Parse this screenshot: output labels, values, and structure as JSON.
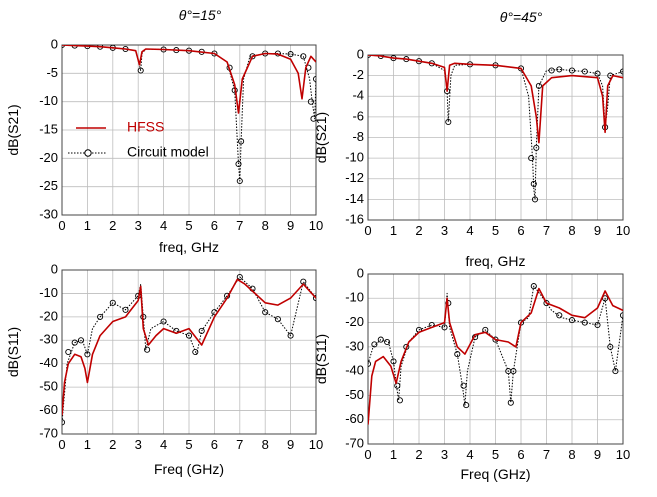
{
  "colors": {
    "hfss": "#c00000",
    "circuit": "#000000",
    "grid": "#bdbdbd"
  },
  "chart_data": [
    {
      "type": "line",
      "title": "θ°=15°",
      "xlabel": "freq, GHz",
      "ylabel": "dB(S21)",
      "xlim": [
        0,
        10
      ],
      "ylim": [
        -30,
        0
      ],
      "xticks": [
        0,
        1,
        2,
        3,
        4,
        5,
        6,
        7,
        8,
        9,
        10
      ],
      "yticks": [
        0,
        -5,
        -10,
        -15,
        -20,
        -25,
        -30
      ],
      "grid": true,
      "legend": {
        "placement": "left",
        "entries": [
          {
            "label": "HFSS",
            "color": "#c00000",
            "style": "solid"
          },
          {
            "label": "Circuit model",
            "color": "#000000",
            "style": "dotted-circle"
          }
        ]
      },
      "series": [
        {
          "name": "HFSS",
          "style": "solid",
          "color": "#c00000",
          "x": [
            0,
            0.5,
            1,
            1.5,
            2,
            2.5,
            2.9,
            3.05,
            3.15,
            3.3,
            4,
            5,
            6,
            6.5,
            6.8,
            6.95,
            7.1,
            7.5,
            8,
            8.5,
            9,
            9.3,
            9.45,
            9.6,
            9.8,
            10
          ],
          "y": [
            0,
            -0.1,
            -0.2,
            -0.3,
            -0.5,
            -0.7,
            -1.0,
            -3.5,
            -1.2,
            -0.7,
            -0.8,
            -1.0,
            -1.5,
            -3,
            -7,
            -12,
            -6,
            -2,
            -1.5,
            -1.6,
            -2.5,
            -5,
            -9.5,
            -4,
            -2,
            -3
          ]
        },
        {
          "name": "Circuit model",
          "style": "dotted",
          "color": "#000000",
          "x": [
            0,
            0.5,
            1,
            1.5,
            2,
            2.5,
            2.9,
            3.1,
            3.15,
            3.3,
            4,
            5,
            6,
            6.5,
            6.8,
            6.95,
            7.0,
            7.05,
            7.15,
            7.4,
            8,
            8.5,
            9,
            9.5,
            9.75,
            9.85,
            9.95,
            10
          ],
          "y": [
            0,
            -0.1,
            -0.2,
            -0.3,
            -0.5,
            -0.7,
            -1.0,
            -4.5,
            -1.5,
            -0.7,
            -0.8,
            -1.0,
            -1.5,
            -3,
            -8,
            -21,
            -24,
            -17,
            -6,
            -2,
            -1.5,
            -1.5,
            -1.6,
            -2,
            -6,
            -10,
            -13,
            -6
          ],
          "markers_x": [
            0,
            0.5,
            1,
            1.5,
            2,
            2.5,
            3.1,
            4,
            4.5,
            5,
            5.5,
            6,
            6.6,
            6.8,
            6.95,
            7.0,
            7.05,
            7.5,
            8,
            8.5,
            9,
            9.5,
            9.7,
            9.8,
            9.9,
            10
          ],
          "markers_y": [
            0,
            -0.1,
            -0.2,
            -0.3,
            -0.5,
            -0.7,
            -4.5,
            -0.8,
            -0.9,
            -1.0,
            -1.2,
            -1.5,
            -4,
            -8,
            -21,
            -24,
            -17,
            -2,
            -1.5,
            -1.5,
            -1.6,
            -2,
            -4,
            -10,
            -13,
            -6
          ]
        }
      ]
    },
    {
      "type": "line",
      "title": "θ°=45°",
      "xlabel": "freq, GHz",
      "ylabel": "dB(S21)",
      "xlim": [
        0,
        10
      ],
      "ylim": [
        -16,
        0
      ],
      "xticks": [
        0,
        1,
        2,
        3,
        4,
        5,
        6,
        7,
        8,
        9,
        10
      ],
      "yticks": [
        0,
        -2,
        -4,
        -6,
        -8,
        -10,
        -12,
        -14,
        -16
      ],
      "grid": true,
      "series": [
        {
          "name": "HFSS",
          "style": "solid",
          "color": "#c00000",
          "x": [
            0,
            0.5,
            1,
            1.5,
            2,
            2.5,
            3.0,
            3.1,
            3.2,
            3.4,
            4,
            5,
            6,
            6.4,
            6.6,
            6.7,
            6.85,
            7.2,
            8,
            9,
            9.2,
            9.3,
            9.4,
            9.6,
            10
          ],
          "y": [
            0,
            -0.1,
            -0.3,
            -0.4,
            -0.6,
            -0.8,
            -1.2,
            -3.5,
            -1.0,
            -0.8,
            -0.9,
            -1.0,
            -1.3,
            -3,
            -6,
            -8.5,
            -3,
            -2.2,
            -2,
            -2.2,
            -4,
            -7.5,
            -3,
            -2,
            -2.2
          ]
        },
        {
          "name": "Circuit model",
          "style": "dotted",
          "color": "#000000",
          "x": [
            0,
            0.5,
            1,
            1.5,
            2,
            2.5,
            3.0,
            3.1,
            3.15,
            3.25,
            3.4,
            4,
            5,
            6,
            6.3,
            6.45,
            6.5,
            6.55,
            6.6,
            6.7,
            7,
            7.5,
            8,
            8.5,
            9,
            9.2,
            9.3,
            9.4,
            9.5,
            10
          ],
          "y": [
            0,
            -0.1,
            -0.3,
            -0.4,
            -0.6,
            -0.8,
            -1.5,
            -3.5,
            -6.5,
            -2,
            -1.0,
            -0.9,
            -1.0,
            -1.3,
            -4,
            -10,
            -13,
            -14,
            -9,
            -3,
            -1.5,
            -1.4,
            -1.5,
            -1.6,
            -1.8,
            -3,
            -7,
            -5,
            -2,
            -1.6
          ],
          "markers_x": [
            0,
            0.5,
            1,
            1.5,
            2,
            2.5,
            3.1,
            3.15,
            4,
            5,
            6,
            6.4,
            6.5,
            6.55,
            6.6,
            6.7,
            7.2,
            7.5,
            8,
            8.5,
            9,
            9.3,
            9.5,
            10
          ],
          "markers_y": [
            0,
            -0.1,
            -0.3,
            -0.4,
            -0.6,
            -0.8,
            -3.5,
            -6.5,
            -0.9,
            -1.0,
            -1.3,
            -10,
            -12.5,
            -14,
            -9,
            -3,
            -1.5,
            -1.4,
            -1.5,
            -1.6,
            -1.8,
            -7,
            -2,
            -1.6
          ]
        }
      ]
    },
    {
      "type": "line",
      "title": "",
      "xlabel": "Freq (GHz)",
      "ylabel": "dB(S11)",
      "xlim": [
        0,
        10
      ],
      "ylim": [
        -70,
        0
      ],
      "xticks": [
        0,
        1,
        2,
        3,
        4,
        5,
        6,
        7,
        8,
        9,
        10
      ],
      "yticks": [
        0,
        -10,
        -20,
        -30,
        -40,
        -50,
        -60,
        -70
      ],
      "grid": true,
      "series": [
        {
          "name": "HFSS",
          "style": "solid",
          "color": "#c00000",
          "x": [
            0,
            0.1,
            0.25,
            0.5,
            0.75,
            0.9,
            1.0,
            1.2,
            1.5,
            2,
            2.5,
            3.0,
            3.1,
            3.2,
            3.4,
            3.7,
            4,
            4.5,
            5,
            5.5,
            6,
            6.5,
            6.9,
            7.2,
            7.5,
            8,
            8.5,
            9,
            9.5,
            10
          ],
          "y": [
            -62,
            -48,
            -40,
            -36,
            -37,
            -42,
            -48,
            -36,
            -28,
            -22,
            -20,
            -13,
            -7,
            -25,
            -32,
            -28,
            -25,
            -27,
            -25,
            -32,
            -20,
            -12,
            -4,
            -6,
            -9,
            -14,
            -15,
            -12,
            -6,
            -12
          ]
        },
        {
          "name": "Circuit model",
          "style": "dotted",
          "color": "#000000",
          "x": [
            0,
            0.2,
            0.5,
            0.8,
            1.0,
            1.2,
            1.5,
            2,
            2.5,
            3.0,
            3.1,
            3.2,
            3.3,
            3.5,
            4,
            4.5,
            5,
            5.3,
            5.5,
            6,
            6.5,
            7,
            7.5,
            8,
            8.5,
            9,
            9.5,
            10
          ],
          "y": [
            -65,
            -40,
            -31,
            -30,
            -36,
            -25,
            -20,
            -14,
            -17,
            -11,
            -6,
            -20,
            -34,
            -25,
            -22,
            -26,
            -28,
            -36,
            -26,
            -18,
            -11,
            -3,
            -8,
            -18,
            -21,
            -28,
            -5,
            -12
          ],
          "markers_x": [
            0,
            0.25,
            0.5,
            0.75,
            1.0,
            1.5,
            2,
            2.5,
            3.0,
            3.2,
            3.35,
            4,
            4.5,
            5,
            5.25,
            5.5,
            6,
            6.5,
            7,
            7.5,
            8,
            8.5,
            9,
            9.5,
            10
          ],
          "markers_y": [
            -65,
            -35,
            -31,
            -30,
            -36,
            -20,
            -14,
            -17,
            -11,
            -20,
            -34,
            -22,
            -26,
            -28,
            -35,
            -26,
            -18,
            -11,
            -3,
            -8,
            -18,
            -21,
            -28,
            -5,
            -12
          ]
        }
      ]
    },
    {
      "type": "line",
      "title": "",
      "xlabel": "Freq (GHz)",
      "ylabel": "dB(S11)",
      "xlim": [
        0,
        10
      ],
      "ylim": [
        -70,
        0
      ],
      "xticks": [
        0,
        1,
        2,
        3,
        4,
        5,
        6,
        7,
        8,
        9,
        10
      ],
      "yticks": [
        0,
        -10,
        -20,
        -30,
        -40,
        -50,
        -60,
        -70
      ],
      "grid": true,
      "series": [
        {
          "name": "HFSS",
          "style": "solid",
          "color": "#c00000",
          "x": [
            0,
            0.15,
            0.3,
            0.6,
            0.9,
            1.1,
            1.3,
            1.6,
            2,
            2.5,
            3.0,
            3.1,
            3.2,
            3.5,
            3.8,
            4.2,
            4.6,
            5,
            5.5,
            5.8,
            6,
            6.4,
            6.7,
            7,
            7.5,
            8,
            8.5,
            9,
            9.3,
            9.6,
            10
          ],
          "y": [
            -62,
            -42,
            -36,
            -34,
            -38,
            -45,
            -36,
            -28,
            -24,
            -22,
            -20,
            -10,
            -20,
            -30,
            -33,
            -25,
            -24,
            -27,
            -28,
            -30,
            -20,
            -16,
            -6,
            -12,
            -14,
            -17,
            -18,
            -14,
            -7,
            -13,
            -15
          ]
        },
        {
          "name": "Circuit model",
          "style": "dotted",
          "color": "#000000",
          "x": [
            0,
            0.2,
            0.5,
            0.8,
            1.0,
            1.1,
            1.2,
            1.3,
            1.6,
            2,
            2.5,
            3.0,
            3.1,
            3.2,
            3.5,
            3.7,
            3.8,
            3.9,
            4.2,
            4.6,
            5,
            5.5,
            5.6,
            5.7,
            6,
            6.3,
            6.5,
            6.8,
            7.2,
            7.6,
            8,
            8.5,
            9,
            9.3,
            9.5,
            9.7,
            10
          ],
          "y": [
            -37,
            -30,
            -27,
            -28,
            -36,
            -45,
            -52,
            -38,
            -28,
            -23,
            -21,
            -22,
            -8,
            -22,
            -33,
            -46,
            -54,
            -40,
            -26,
            -23,
            -27,
            -40,
            -53,
            -40,
            -20,
            -18,
            -5,
            -9,
            -15,
            -18,
            -19,
            -20,
            -21,
            -10,
            -30,
            -40,
            -17
          ],
          "markers_x": [
            0,
            0.25,
            0.5,
            0.75,
            1.0,
            1.15,
            1.25,
            1.5,
            2,
            2.5,
            3.0,
            3.15,
            3.5,
            3.75,
            3.85,
            4.2,
            4.6,
            5,
            5.5,
            5.6,
            5.7,
            6,
            6.5,
            7,
            7.5,
            8,
            8.5,
            9,
            9.3,
            9.5,
            9.7,
            10
          ],
          "markers_y": [
            -37,
            -29,
            -27,
            -28,
            -36,
            -46,
            -52,
            -30,
            -23,
            -21,
            -22,
            -12,
            -33,
            -46,
            -54,
            -26,
            -23,
            -27,
            -40,
            -53,
            -40,
            -20,
            -5,
            -12,
            -17,
            -19,
            -20,
            -21,
            -10,
            -30,
            -40,
            -17
          ]
        }
      ]
    }
  ]
}
